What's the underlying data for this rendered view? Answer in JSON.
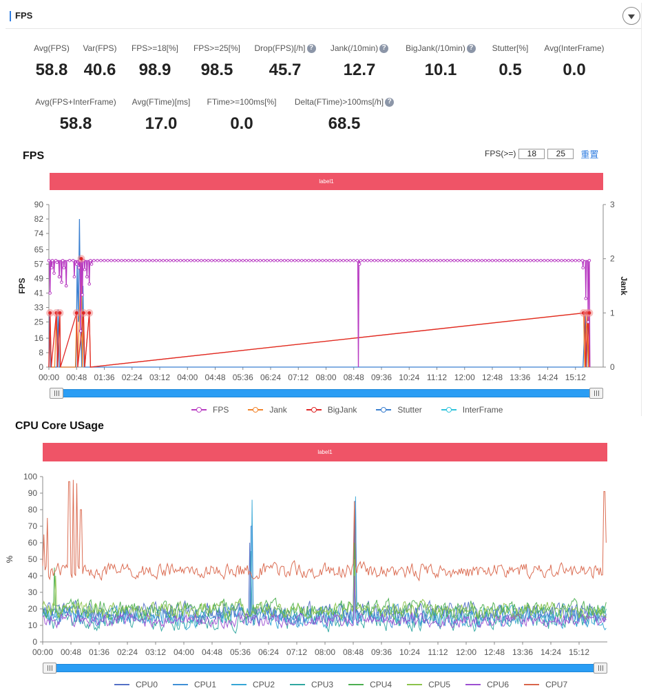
{
  "fps_panel": {
    "title": "FPS",
    "metrics_row1": [
      {
        "label": "Avg(FPS)",
        "value": "58.8",
        "help": false
      },
      {
        "label": "Var(FPS)",
        "value": "40.6",
        "help": false
      },
      {
        "label": "FPS>=18[%]",
        "value": "98.9",
        "help": false
      },
      {
        "label": "FPS>=25[%]",
        "value": "98.5",
        "help": false
      },
      {
        "label": "Drop(FPS)[/h]",
        "value": "45.7",
        "help": true
      },
      {
        "label": "Jank(/10min)",
        "value": "12.7",
        "help": true
      },
      {
        "label": "BigJank(/10min)",
        "value": "10.1",
        "help": true
      },
      {
        "label": "Stutter[%]",
        "value": "0.5",
        "help": false
      },
      {
        "label": "Avg(InterFrame)",
        "value": "0.0",
        "help": false
      }
    ],
    "metrics_row2": [
      {
        "label": "Avg(FPS+InterFrame)",
        "value": "58.8",
        "help": false
      },
      {
        "label": "Avg(FTime)[ms]",
        "value": "17.0",
        "help": false
      },
      {
        "label": "FTime>=100ms[%]",
        "value": "0.0",
        "help": false
      },
      {
        "label": "Delta(FTime)>100ms[/h]",
        "value": "68.5",
        "help": true
      }
    ]
  },
  "fps_chart_section": {
    "title": "FPS",
    "threshold_label": "FPS(>=)",
    "threshold_low": "18",
    "threshold_high": "25",
    "reset_label": "重置",
    "label_bar": "label1"
  },
  "cpu_chart_section": {
    "title": "CPU Core USage",
    "label_bar": "label1"
  },
  "chart_data": [
    {
      "type": "line",
      "x_tick_labels": [
        "00:00",
        "00:48",
        "01:36",
        "02:24",
        "03:12",
        "04:00",
        "04:48",
        "05:36",
        "06:24",
        "07:12",
        "08:00",
        "08:48",
        "09:36",
        "10:24",
        "11:12",
        "12:00",
        "12:48",
        "13:36",
        "14:24",
        "15:12"
      ],
      "x_range_minutes": [
        0,
        960
      ],
      "ylabel": "FPS",
      "y_ticks": [
        0,
        8,
        16,
        25,
        33,
        41,
        49,
        57,
        65,
        74,
        82,
        90
      ],
      "ylim": [
        0,
        90
      ],
      "y2label": "Jank",
      "y2_ticks": [
        0,
        1,
        2,
        3
      ],
      "y2lim": [
        0,
        3
      ],
      "legend": [
        "FPS",
        "Jank",
        "BigJank",
        "Stutter",
        "InterFrame"
      ],
      "legend_position": "bottom",
      "colors": {
        "FPS": "#b83bc2",
        "Jank": "#f2832a",
        "BigJank": "#e02727",
        "Stutter": "#3a7fd0",
        "InterFrame": "#2fc3dc"
      },
      "series": [
        {
          "name": "FPS",
          "axis": "left",
          "nominal": 59,
          "dips": [
            [
              2,
              41
            ],
            [
              5,
              55
            ],
            [
              9,
              52
            ],
            [
              14,
              58
            ],
            [
              18,
              50
            ],
            [
              22,
              47
            ],
            [
              26,
              55
            ],
            [
              30,
              45
            ],
            [
              44,
              50
            ],
            [
              48,
              57
            ],
            [
              52,
              55
            ],
            [
              55,
              20
            ],
            [
              58,
              40
            ],
            [
              62,
              54
            ],
            [
              66,
              50
            ],
            [
              70,
              46
            ],
            [
              74,
              57
            ],
            [
              536,
              0
            ],
            [
              538,
              57
            ],
            [
              925,
              55
            ],
            [
              930,
              38
            ],
            [
              934,
              25
            ],
            [
              937,
              0
            ]
          ]
        },
        {
          "name": "Jank",
          "axis": "right",
          "points": [
            [
              0,
              0
            ],
            [
              2,
              1
            ],
            [
              4,
              0
            ],
            [
              10,
              0
            ],
            [
              13,
              1
            ],
            [
              15,
              0
            ],
            [
              19,
              1
            ],
            [
              20,
              0
            ],
            [
              46,
              0
            ],
            [
              48,
              1
            ],
            [
              50,
              0
            ],
            [
              56,
              2
            ],
            [
              58,
              0
            ],
            [
              60,
              1
            ],
            [
              62,
              0
            ],
            [
              70,
              1
            ],
            [
              72,
              0
            ],
            [
              926,
              1
            ],
            [
              928,
              0
            ],
            [
              932,
              1
            ],
            [
              934,
              0
            ],
            [
              936,
              1
            ],
            [
              937,
              0
            ]
          ]
        },
        {
          "name": "BigJank",
          "axis": "right",
          "points": [
            [
              0,
              0
            ],
            [
              2,
              1
            ],
            [
              4,
              0
            ],
            [
              13,
              1
            ],
            [
              15,
              0
            ],
            [
              19,
              1
            ],
            [
              20,
              0
            ],
            [
              48,
              1
            ],
            [
              50,
              0
            ],
            [
              60,
              1
            ],
            [
              62,
              0
            ],
            [
              70,
              1
            ],
            [
              72,
              0
            ],
            [
              928,
              1
            ],
            [
              930,
              0
            ],
            [
              934,
              1
            ],
            [
              936,
              0
            ]
          ]
        },
        {
          "name": "Stutter",
          "axis": "left",
          "points": [
            [
              0,
              0
            ],
            [
              1,
              30
            ],
            [
              3,
              0
            ],
            [
              14,
              0
            ],
            [
              16,
              32
            ],
            [
              18,
              0
            ],
            [
              47,
              0
            ],
            [
              49,
              58
            ],
            [
              51,
              25
            ],
            [
              53,
              82
            ],
            [
              55,
              20
            ],
            [
              57,
              0
            ],
            [
              59,
              45
            ],
            [
              61,
              0
            ],
            [
              925,
              0
            ],
            [
              927,
              14
            ],
            [
              929,
              30
            ],
            [
              931,
              0
            ],
            [
              933,
              25
            ],
            [
              935,
              18
            ],
            [
              937,
              0
            ]
          ]
        },
        {
          "name": "InterFrame",
          "axis": "left",
          "points": []
        }
      ]
    },
    {
      "type": "line",
      "x_tick_labels": [
        "00:00",
        "00:48",
        "01:36",
        "02:24",
        "03:12",
        "04:00",
        "04:48",
        "05:36",
        "06:24",
        "07:12",
        "08:00",
        "08:48",
        "09:36",
        "10:24",
        "11:12",
        "12:00",
        "12:48",
        "13:36",
        "14:24",
        "15:12"
      ],
      "x_range_minutes": [
        0,
        960
      ],
      "ylabel": "%",
      "y_ticks": [
        0,
        10,
        20,
        30,
        40,
        50,
        60,
        70,
        80,
        90,
        100
      ],
      "ylim": [
        0,
        100
      ],
      "legend_position": "bottom",
      "colors": {
        "CPU0": "#5470c6",
        "CPU1": "#3f8fd6",
        "CPU2": "#35a6d6",
        "CPU3": "#2fa7a0",
        "CPU4": "#4caf50",
        "CPU5": "#8bc34a",
        "CPU6": "#9c4fd1",
        "CPU7": "#d9654a"
      },
      "series": [
        {
          "name": "CPU0",
          "mean": 18,
          "jitter": 9,
          "spikes": [
            [
              352,
              60
            ],
            [
              530,
              80
            ]
          ]
        },
        {
          "name": "CPU1",
          "mean": 16,
          "jitter": 9,
          "spikes": [
            [
              355,
              70
            ],
            [
              531,
              85
            ]
          ]
        },
        {
          "name": "CPU2",
          "mean": 15,
          "jitter": 9,
          "spikes": [
            [
              356,
              86
            ],
            [
              532,
              88
            ]
          ]
        },
        {
          "name": "CPU3",
          "mean": 14,
          "jitter": 10,
          "spikes": [
            [
              354,
              55
            ],
            [
              531,
              70
            ]
          ]
        },
        {
          "name": "CPU4",
          "mean": 20,
          "jitter": 8,
          "spikes": [
            [
              20,
              45
            ],
            [
              530,
              60
            ]
          ]
        },
        {
          "name": "CPU5",
          "mean": 19,
          "jitter": 8,
          "spikes": [
            [
              22,
              40
            ],
            [
              530,
              50
            ]
          ]
        },
        {
          "name": "CPU6",
          "mean": 13,
          "jitter": 6,
          "spikes": [
            [
              530,
              40
            ]
          ]
        },
        {
          "name": "CPU7",
          "mean": 43,
          "jitter": 7,
          "spikes": [
            [
              2,
              65
            ],
            [
              8,
              75
            ],
            [
              45,
              97
            ],
            [
              52,
              98
            ],
            [
              58,
              96
            ],
            [
              65,
              80
            ],
            [
              530,
              85
            ],
            [
              955,
              91
            ],
            [
              958,
              60
            ]
          ]
        }
      ]
    }
  ]
}
